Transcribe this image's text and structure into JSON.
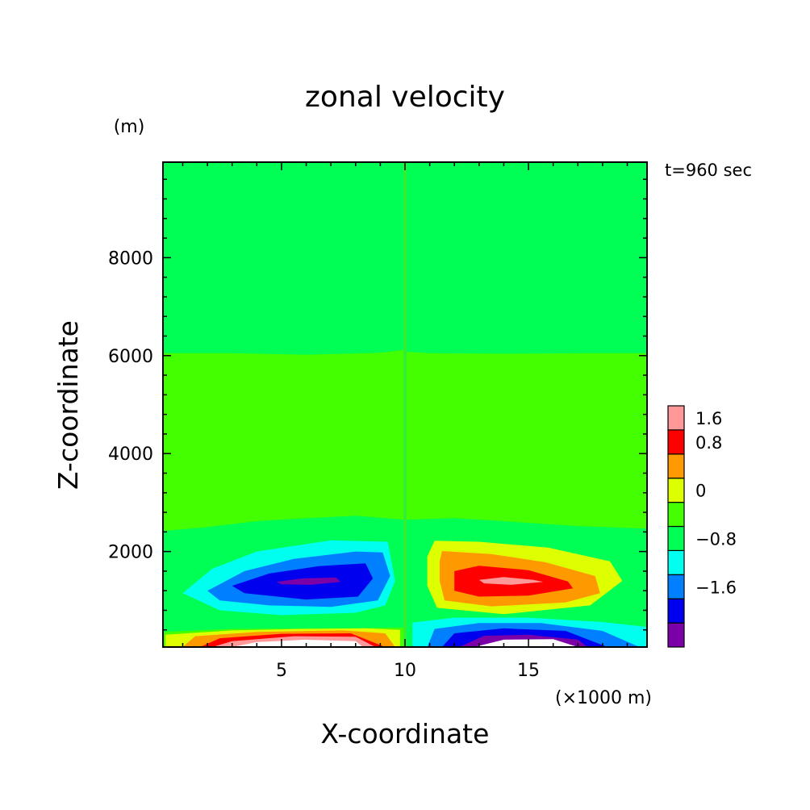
{
  "chart_data": {
    "type": "heatmap",
    "title": "zonal velocity",
    "xlabel": "X-coordinate",
    "ylabel": "Z-coordinate",
    "x_unit": "(×1000 m)",
    "y_unit": "(m)",
    "time_label": "t=960 sec",
    "xlim": [
      0.2,
      19.8
    ],
    "ylim": [
      50,
      9950
    ],
    "x_ticks": [
      "5",
      "10",
      "15"
    ],
    "y_ticks": [
      "2000",
      "4000",
      "6000",
      "8000"
    ],
    "colorbar": {
      "tick_labels": [
        "1.6",
        "0.8",
        "0",
        "−0.8",
        "−1.6"
      ],
      "levels": [
        -2.4,
        -2.0,
        -1.6,
        -1.2,
        -0.8,
        -0.4,
        0.0,
        0.4,
        0.8,
        1.2,
        1.6,
        2.0,
        2.4
      ],
      "colors": [
        "#7b00a8",
        "#0000ee",
        "#0080ff",
        "#00ffee",
        "#00ff55",
        "#44ff00",
        "#ddff00",
        "#ff9900",
        "#ff0000",
        "#ff9999"
      ],
      "background_color": "#00ff55"
    },
    "contour_regions": [
      {
        "level_index": 5,
        "color": "#44ff00",
        "polygons": [
          [
            [
              0.2,
              6050
            ],
            [
              3,
              6050
            ],
            [
              6,
              6020
            ],
            [
              9,
              6060
            ],
            [
              10,
              6120
            ],
            [
              10,
              2650
            ],
            [
              8,
              2730
            ],
            [
              6,
              2680
            ],
            [
              4,
              2620
            ],
            [
              2,
              2500
            ],
            [
              0.2,
              2420
            ]
          ],
          [
            [
              10,
              6080
            ],
            [
              11,
              6050
            ],
            [
              14,
              6040
            ],
            [
              17,
              6050
            ],
            [
              19.8,
              6050
            ],
            [
              19.8,
              2470
            ],
            [
              17,
              2520
            ],
            [
              14,
              2620
            ],
            [
              12,
              2680
            ],
            [
              10,
              2650
            ]
          ],
          [
            [
              0.2,
              360
            ],
            [
              3,
              420
            ],
            [
              6,
              430
            ],
            [
              9,
              440
            ],
            [
              10,
              450
            ],
            [
              10,
              50
            ],
            [
              0.2,
              50
            ]
          ]
        ]
      },
      {
        "level_index": 3,
        "color": "#00ffee",
        "polygons": [
          [
            [
              1,
              1150
            ],
            [
              2.2,
              1650
            ],
            [
              4,
              2000
            ],
            [
              7,
              2230
            ],
            [
              9.3,
              2200
            ],
            [
              9.6,
              1400
            ],
            [
              9.2,
              900
            ],
            [
              8,
              750
            ],
            [
              5,
              700
            ],
            [
              2.5,
              800
            ]
          ],
          [
            [
              10.3,
              50
            ],
            [
              10.3,
              550
            ],
            [
              12,
              650
            ],
            [
              15,
              650
            ],
            [
              18,
              560
            ],
            [
              19.8,
              460
            ],
            [
              19.8,
              50
            ]
          ]
        ]
      },
      {
        "level_index": 2,
        "color": "#0080ff",
        "polygons": [
          [
            [
              2,
              1200
            ],
            [
              3.5,
              1600
            ],
            [
              5.5,
              1850
            ],
            [
              8,
              2000
            ],
            [
              9.1,
              1980
            ],
            [
              9.4,
              1500
            ],
            [
              8.9,
              1000
            ],
            [
              7,
              870
            ],
            [
              4.5,
              900
            ],
            [
              2.5,
              1000
            ]
          ],
          [
            [
              10.9,
              50
            ],
            [
              11.2,
              420
            ],
            [
              13,
              540
            ],
            [
              15.5,
              540
            ],
            [
              18,
              380
            ],
            [
              19.5,
              50
            ]
          ]
        ]
      },
      {
        "level_index": 1,
        "color": "#0000ee",
        "polygons": [
          [
            [
              3,
              1300
            ],
            [
              4.5,
              1550
            ],
            [
              6.5,
              1700
            ],
            [
              8.4,
              1760
            ],
            [
              8.7,
              1450
            ],
            [
              8.1,
              1080
            ],
            [
              6,
              1020
            ],
            [
              3.5,
              1150
            ]
          ],
          [
            [
              11.5,
              50
            ],
            [
              12,
              330
            ],
            [
              14,
              430
            ],
            [
              16.5,
              380
            ],
            [
              18.2,
              50
            ]
          ]
        ]
      },
      {
        "level_index": 0,
        "color": "#7b00a8",
        "polygons": [
          [
            [
              4.8,
              1380
            ],
            [
              5.8,
              1450
            ],
            [
              7.2,
              1470
            ],
            [
              7.4,
              1380
            ],
            [
              6.2,
              1320
            ],
            [
              5,
              1330
            ]
          ],
          [
            [
              12.2,
              50
            ],
            [
              13.2,
              280
            ],
            [
              15,
              300
            ],
            [
              17,
              200
            ],
            [
              17.4,
              50
            ]
          ]
        ]
      },
      {
        "level_index": 6,
        "color": "#ddff00",
        "polygons": [
          [
            [
              11.2,
              2220
            ],
            [
              13,
              2200
            ],
            [
              15.8,
              2080
            ],
            [
              18.3,
              1800
            ],
            [
              18.8,
              1400
            ],
            [
              17.5,
              900
            ],
            [
              14,
              720
            ],
            [
              11.3,
              850
            ],
            [
              10.9,
              1300
            ],
            [
              10.9,
              1900
            ]
          ],
          [
            [
              0.3,
              50
            ],
            [
              0.3,
              300
            ],
            [
              3,
              390
            ],
            [
              6,
              420
            ],
            [
              8.5,
              430
            ],
            [
              9.8,
              400
            ],
            [
              9.8,
              50
            ]
          ]
        ]
      },
      {
        "level_index": 7,
        "color": "#ff9900",
        "polygons": [
          [
            [
              11.5,
              2010
            ],
            [
              13.5,
              1950
            ],
            [
              15.7,
              1780
            ],
            [
              17.7,
              1500
            ],
            [
              17.9,
              1150
            ],
            [
              16.5,
              960
            ],
            [
              13.5,
              880
            ],
            [
              11.6,
              1000
            ],
            [
              11.4,
              1400
            ],
            [
              11.4,
              1800
            ]
          ],
          [
            [
              1,
              50
            ],
            [
              1.5,
              270
            ],
            [
              4,
              360
            ],
            [
              7.5,
              390
            ],
            [
              9.2,
              330
            ],
            [
              9.6,
              50
            ]
          ]
        ]
      },
      {
        "level_index": 8,
        "color": "#ff0000",
        "polygons": [
          [
            [
              12,
              1600
            ],
            [
              13,
              1710
            ],
            [
              15,
              1620
            ],
            [
              16.6,
              1390
            ],
            [
              16.8,
              1250
            ],
            [
              15,
              1100
            ],
            [
              13,
              1080
            ],
            [
              12,
              1200
            ]
          ],
          [
            [
              1.7,
              50
            ],
            [
              2.5,
              230
            ],
            [
              5,
              320
            ],
            [
              7.8,
              330
            ],
            [
              9.2,
              50
            ]
          ]
        ]
      },
      {
        "level_index": 9,
        "color": "#ff9999",
        "polygons": [
          [
            [
              13,
              1420
            ],
            [
              14,
              1480
            ],
            [
              15.2,
              1420
            ],
            [
              15.6,
              1380
            ],
            [
              14.3,
              1320
            ],
            [
              13.2,
              1350
            ]
          ],
          [
            [
              2.2,
              50
            ],
            [
              3,
              170
            ],
            [
              5.5,
              270
            ],
            [
              8,
              260
            ],
            [
              8.8,
              50
            ]
          ]
        ]
      },
      {
        "level_index": -2,
        "color": "#ffffff",
        "polygons": [
          [
            [
              3,
              50
            ],
            [
              4,
              150
            ],
            [
              6,
              200
            ],
            [
              8,
              170
            ],
            [
              8.3,
              50
            ]
          ],
          [
            [
              12.8,
              50
            ],
            [
              14,
              200
            ],
            [
              16,
              210
            ],
            [
              17,
              50
            ]
          ]
        ]
      }
    ]
  }
}
